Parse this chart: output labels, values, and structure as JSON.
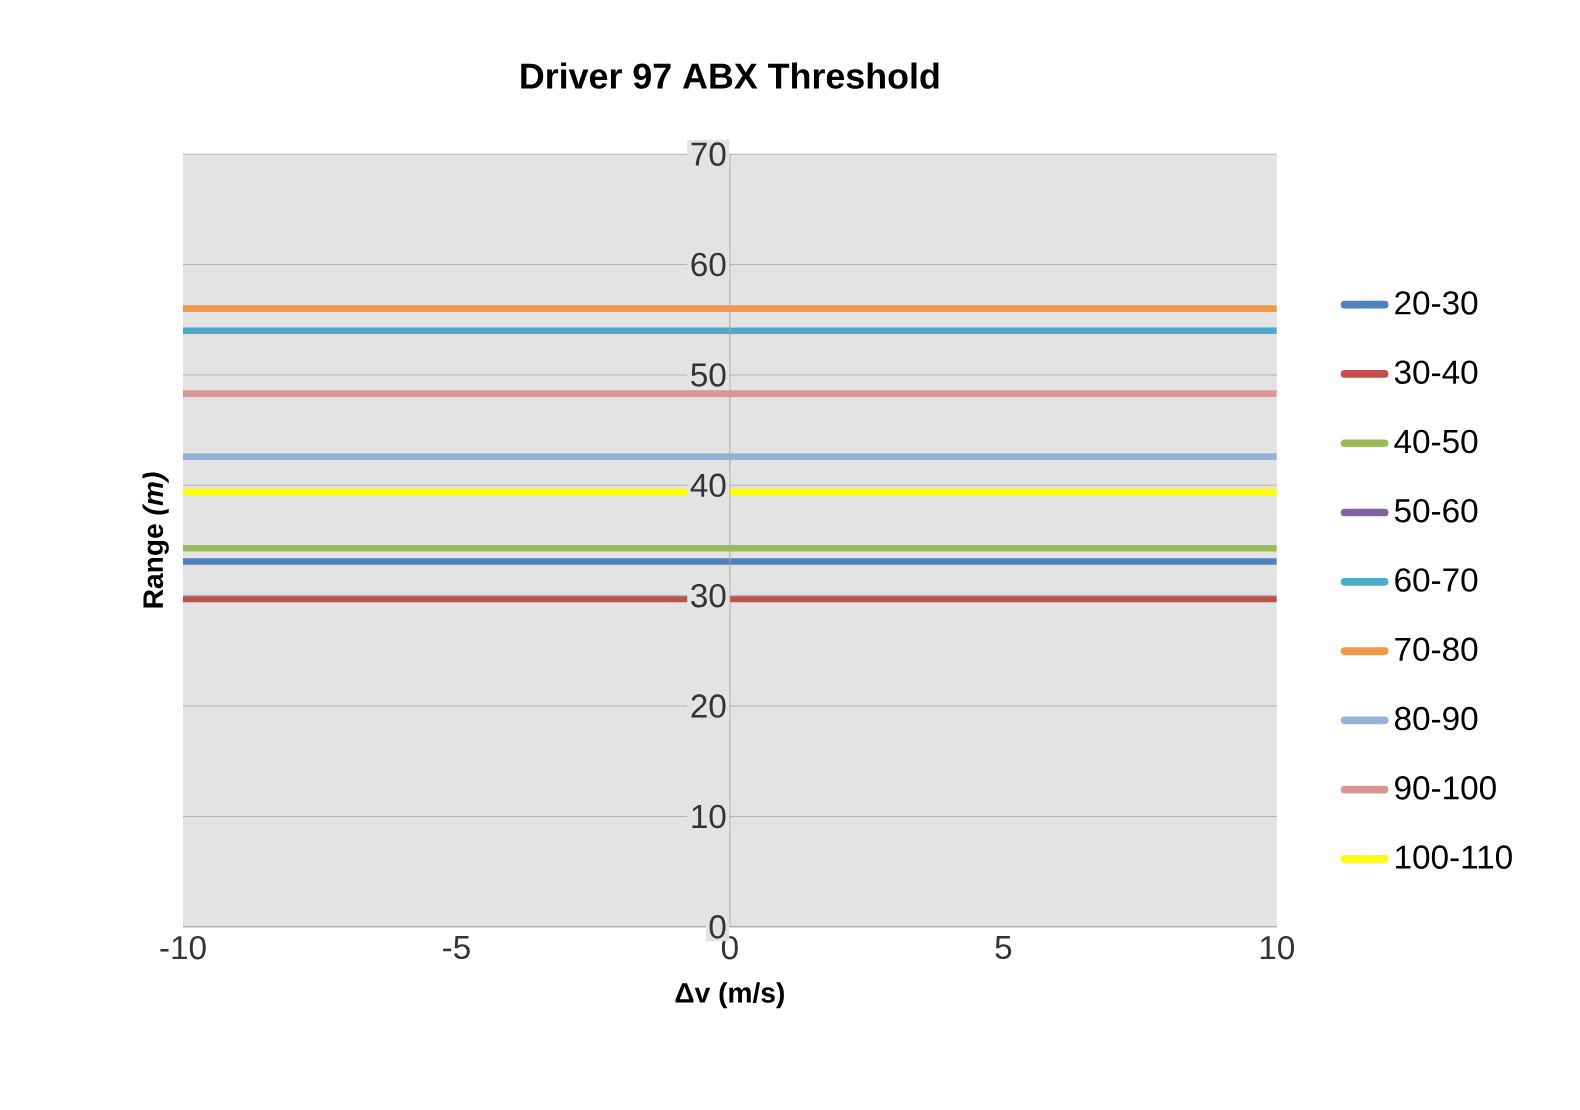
{
  "chart_data": {
    "type": "line",
    "title": "Driver 97 ABX Threshold",
    "xlabel": "Δv (m/s)",
    "ylabel": "Range *(m)*",
    "x": [
      -10,
      10
    ],
    "series": [
      {
        "name": "20-30",
        "color": "#4f81bd",
        "values": [
          33.1,
          33.1
        ]
      },
      {
        "name": "30-40",
        "color": "#c0504d",
        "values": [
          29.7,
          29.7
        ]
      },
      {
        "name": "40-50",
        "color": "#9bbb59",
        "values": [
          34.3,
          34.3
        ]
      },
      {
        "name": "50-60",
        "color": "#8064a2",
        "values": [
          null,
          null
        ]
      },
      {
        "name": "60-70",
        "color": "#4bacc6",
        "values": [
          54,
          54
        ]
      },
      {
        "name": "70-80",
        "color": "#f79646",
        "values": [
          56,
          56
        ]
      },
      {
        "name": "80-90",
        "color": "#95b3d7",
        "values": [
          42.6,
          42.6
        ]
      },
      {
        "name": "90-100",
        "color": "#d99694",
        "values": [
          48.3,
          48.3
        ]
      },
      {
        "name": "100-110",
        "color": "#ffff00",
        "values": [
          39.4,
          39.4
        ]
      }
    ],
    "xlim": [
      -10,
      10
    ],
    "ylim": [
      0,
      70
    ],
    "xticks": [
      -10,
      -5,
      0,
      5,
      10
    ],
    "yticks": [
      0,
      10,
      20,
      30,
      40,
      50,
      60,
      70
    ],
    "grid": "y",
    "legend": "right",
    "marker": "none",
    "line_style": "solid"
  }
}
